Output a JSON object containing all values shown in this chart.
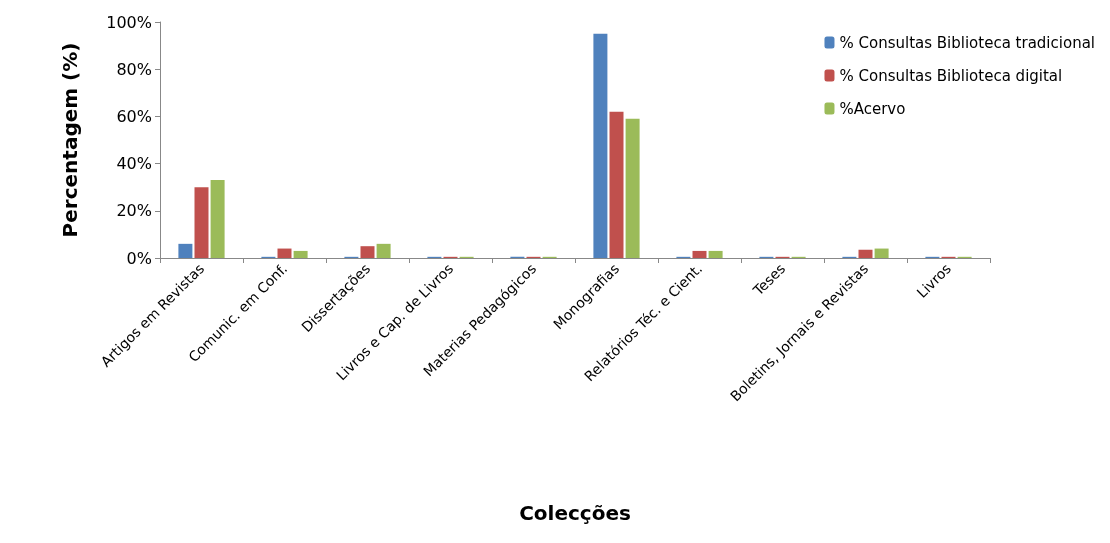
{
  "chart_data": {
    "type": "bar",
    "xlabel": "Colecções",
    "ylabel": "Percentagem (%)",
    "categories": [
      "Artigos em Revistas",
      "Comunic. em Conf.",
      "Dissertações",
      "Livros e Cap. de Livros",
      "Materias Pedagógicos",
      "Monografias",
      "Relatórios Téc. e Cient.",
      "Teses",
      "Boletins, Jornais e Revistas",
      "Livros"
    ],
    "series": [
      {
        "name": "% Consultas Biblioteca tradicional",
        "color": "#4f81bd",
        "values": [
          6,
          0.5,
          0.5,
          0.5,
          0.5,
          95,
          0.5,
          0.5,
          0.5,
          0.5
        ]
      },
      {
        "name": "% Consultas Biblioteca digital",
        "color": "#c0504d",
        "values": [
          30,
          4,
          5,
          0.5,
          0.5,
          62,
          3,
          0.5,
          3.5,
          0.5
        ]
      },
      {
        "name": "%Acervo",
        "color": "#9bbb59",
        "values": [
          33,
          3,
          6,
          0.5,
          0.5,
          59,
          3,
          0.5,
          4,
          0.5
        ]
      }
    ],
    "ylim": [
      0,
      100
    ],
    "yticks": [
      {
        "value": 0,
        "label": "0%"
      },
      {
        "value": 20,
        "label": "20%"
      },
      {
        "value": 40,
        "label": "40%"
      },
      {
        "value": 60,
        "label": "60%"
      },
      {
        "value": 80,
        "label": "80%"
      },
      {
        "value": 100,
        "label": "100%"
      }
    ],
    "grid": false,
    "legend": "top right"
  }
}
